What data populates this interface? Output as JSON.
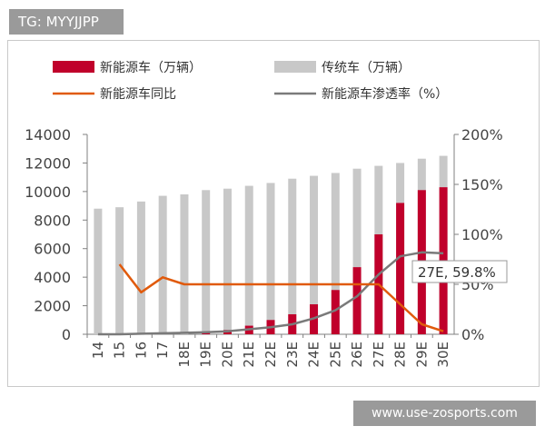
{
  "header_tag": "TG: MYYJJPP",
  "watermark": "www.use-zosports.com",
  "chart_data": {
    "type": "bar",
    "categories": [
      "14",
      "15",
      "16",
      "17",
      "18E",
      "19E",
      "20E",
      "21E",
      "22E",
      "23E",
      "24E",
      "25E",
      "26E",
      "27E",
      "28E",
      "29E",
      "30E"
    ],
    "series": [
      {
        "name": "新能源车（万辆）",
        "type": "bar",
        "axis": "left",
        "values": [
          0,
          0,
          0,
          0,
          0,
          100,
          300,
          600,
          1000,
          1400,
          2100,
          3100,
          4700,
          7000,
          9200,
          10100,
          10300
        ]
      },
      {
        "name": "传统车（万辆）",
        "type": "bar",
        "axis": "left",
        "values": [
          8800,
          8900,
          9300,
          9700,
          9800,
          10100,
          10200,
          10400,
          10600,
          10900,
          11100,
          11300,
          11600,
          11800,
          12000,
          12300,
          12500
        ]
      },
      {
        "name": "新能源车同比",
        "type": "line",
        "axis": "right",
        "values": [
          null,
          70,
          42,
          57,
          50,
          50,
          50,
          50,
          50,
          50,
          50,
          50,
          50,
          50,
          30,
          10,
          3
        ]
      },
      {
        "name": "新能源车渗透率（%）",
        "type": "line",
        "axis": "right",
        "values": [
          0,
          0,
          0.5,
          1,
          1.5,
          2,
          3,
          5,
          7,
          10,
          16,
          24,
          38,
          59.8,
          78,
          82,
          81
        ]
      }
    ],
    "ylim_left": [
      0,
      14000
    ],
    "ylim_right": [
      0,
      200
    ],
    "yticks_left": [
      "0",
      "2000",
      "4000",
      "6000",
      "8000",
      "10000",
      "12000",
      "14000"
    ],
    "yticks_right": [
      "0%",
      "50%",
      "100%",
      "150%",
      "200%"
    ],
    "annotation": {
      "category": "27E",
      "text": "27E, 59.8%"
    },
    "colors": {
      "ev": "#c0002b",
      "trad": "#c8c8c8",
      "yoy": "#e05a0c",
      "penetration": "#7a7a7a"
    },
    "legend_position": "top",
    "grid": false
  }
}
